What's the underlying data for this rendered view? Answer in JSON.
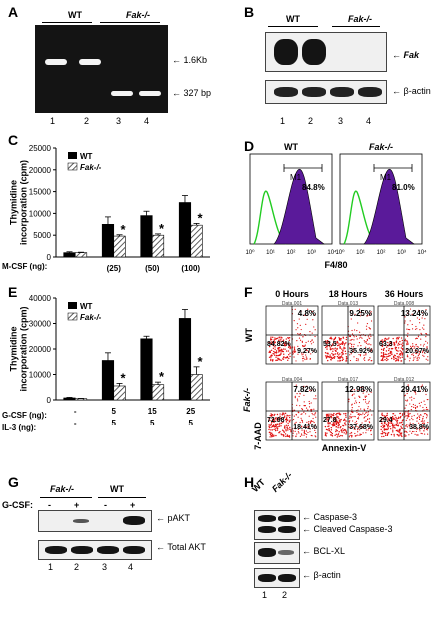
{
  "panels": {
    "A": {
      "label": "A",
      "wt": "WT",
      "ko": "Fak-/-",
      "bands": [
        "← 1.6Kb",
        "← 327 bp"
      ],
      "lanes": [
        "1",
        "2",
        "3",
        "4"
      ]
    },
    "B": {
      "label": "B",
      "wt": "WT",
      "ko": "Fak-/-",
      "rows": [
        "Fak",
        "β-actin"
      ],
      "lanes": [
        "1",
        "2",
        "3",
        "4"
      ]
    },
    "C": {
      "label": "C",
      "ylabel": "Thymidine incorporation (cpm)",
      "xrow_label": "M-CSF (ng):",
      "legend": [
        "WT",
        "Fak-/-"
      ],
      "star": "*"
    },
    "D": {
      "label": "D",
      "titles": [
        "WT",
        "Fak-/-"
      ],
      "gate": "M1",
      "pcts": [
        "84.8%",
        "81.0%"
      ],
      "xlabel": "F4/80",
      "ticks": [
        "10⁰",
        "10¹",
        "10²",
        "10³",
        "10⁴"
      ]
    },
    "E": {
      "label": "E",
      "ylabel": "Thymidine incorporation (cpm)",
      "row1_label": "G-CSF (ng):",
      "row2_label": "IL-3 (ng):",
      "legend": [
        "WT",
        "Fak-/-"
      ],
      "star": "*"
    },
    "F": {
      "label": "F",
      "times": [
        "0 Hours",
        "18 Hours",
        "36 Hours"
      ],
      "datatags": [
        "Data.001",
        "Data.013",
        "Data.008",
        "Data.004",
        "Data.017",
        "Data.012"
      ],
      "row_labels": [
        "WT",
        "Fak-/-"
      ],
      "y_axis": "7-AAD",
      "x_axis": "Annexin-V",
      "plots": [
        {
          "ul": "",
          "ur": "4.8%",
          "ll": "84.82%",
          "lr": "9.27%"
        },
        {
          "ul": "",
          "ur": "9.25%",
          "ll": "53.5",
          "lr": "35.92%"
        },
        {
          "ul": "",
          "ur": "13.24%",
          "ll": "63.3",
          "lr": "20.07%"
        },
        {
          "ul": "",
          "ur": "7.82%",
          "ll": "72.98",
          "lr": "18.41%"
        },
        {
          "ul": "",
          "ur": "12.98%",
          "ll": "27.8",
          "lr": "37.68%"
        },
        {
          "ul": "",
          "ur": "29.41%",
          "ll": "29.4",
          "lr": "38.8%"
        }
      ]
    },
    "G": {
      "label": "G",
      "ko": "Fak-/-",
      "wt": "WT",
      "treat_label": "G-CSF:",
      "signs": [
        "-",
        "+",
        "-",
        "+"
      ],
      "rows": [
        "pAKT",
        "Total AKT"
      ],
      "lanes": [
        "1",
        "2",
        "3",
        "4"
      ]
    },
    "H": {
      "label": "H",
      "wt": "WT",
      "ko": "Fak-/-",
      "rows": [
        "Caspase-3",
        "Cleaved Caspase-3",
        "BCL-XL",
        "β-actin"
      ],
      "lanes": [
        "1",
        "2"
      ]
    }
  },
  "chart_data": [
    {
      "type": "bar",
      "title": "",
      "ylabel": "Thymidine incorporation (cpm)",
      "xlabel": "M-CSF (ng)",
      "categories": [
        "",
        "(25)",
        "(50)",
        "(100)"
      ],
      "series": [
        {
          "name": "WT",
          "values": [
            1000,
            7500,
            9500,
            12500
          ],
          "errors": [
            200,
            1700,
            1000,
            1600
          ]
        },
        {
          "name": "Fak-/-",
          "values": [
            1000,
            4800,
            5000,
            7300
          ],
          "errors": [
            100,
            300,
            300,
            400
          ]
        }
      ],
      "significance": [
        false,
        true,
        true,
        true
      ],
      "ylim": [
        0,
        25000
      ],
      "yticks": [
        0,
        5000,
        10000,
        15000,
        20000,
        25000
      ]
    },
    {
      "type": "bar",
      "title": "",
      "ylabel": "Thymidine incorporation (cpm)",
      "categories": [
        "-",
        "5",
        "15",
        "25"
      ],
      "row2_categories": [
        "-",
        "5",
        "5",
        "5"
      ],
      "series": [
        {
          "name": "WT",
          "values": [
            800,
            15500,
            24000,
            32000
          ],
          "errors": [
            200,
            3000,
            1000,
            3500
          ]
        },
        {
          "name": "Fak-/-",
          "values": [
            500,
            5500,
            6000,
            10000
          ],
          "errors": [
            100,
            1000,
            1000,
            3000
          ]
        }
      ],
      "significance": [
        false,
        true,
        true,
        true
      ],
      "ylim": [
        0,
        40000
      ],
      "yticks": [
        0,
        10000,
        20000,
        30000,
        40000
      ]
    }
  ],
  "colors": {
    "wt_bar": "#000000",
    "ko_hatch": "#555555",
    "histogram_fill": "#5a1a9a",
    "histogram_control": "#22cc22",
    "dot": "#e01010"
  }
}
